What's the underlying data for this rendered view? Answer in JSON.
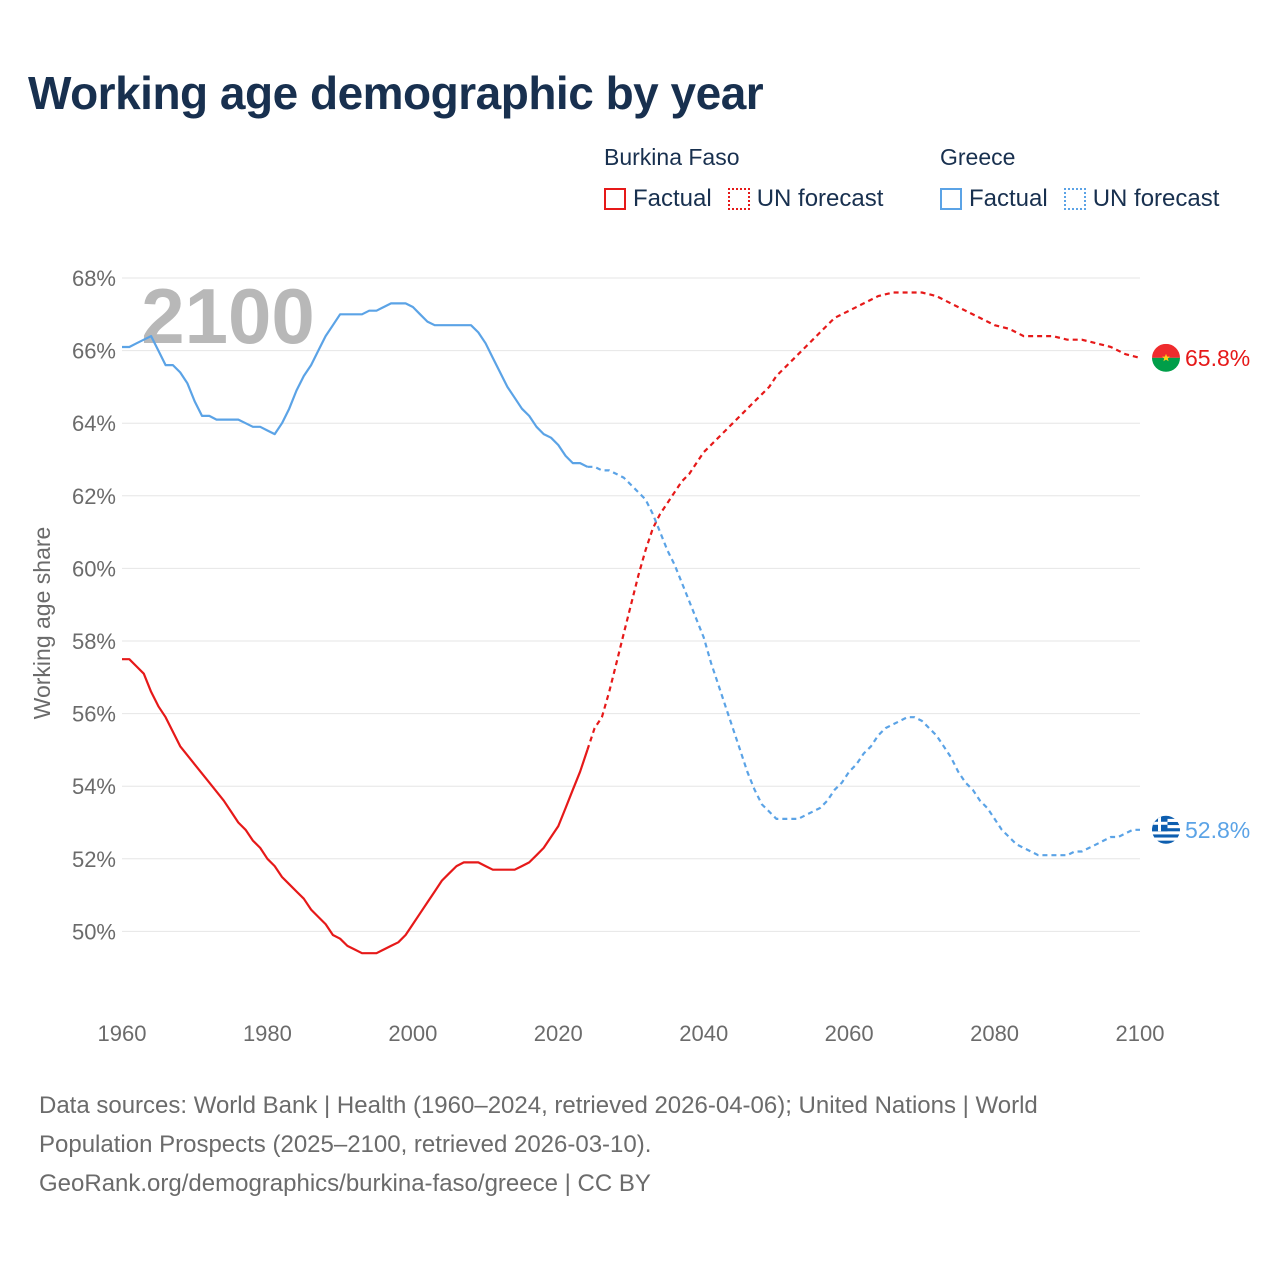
{
  "title": "Working age demographic by year",
  "legend": [
    {
      "country": "Burkina Faso",
      "color": "#e61919",
      "factual_label": "Factual",
      "forecast_label": "UN forecast"
    },
    {
      "country": "Greece",
      "color": "#5ba3e6",
      "factual_label": "Factual",
      "forecast_label": "UN forecast"
    }
  ],
  "year_watermark": "2100",
  "sources": {
    "line1": "Data sources: World Bank | Health (1960–2024, retrieved 2026-04-06); United Nations | World",
    "line2": "Population Prospects (2025–2100, retrieved 2026-03-10).",
    "line3": "GeoRank.org/demographics/burkina-faso/greece | CC BY"
  },
  "chart_data": {
    "type": "line",
    "title": "Working age demographic by year",
    "ylabel": "Working age share",
    "xlabel": "",
    "xlim": [
      1960,
      2100
    ],
    "ylim": [
      48,
      68
    ],
    "x_ticks": [
      1960,
      1980,
      2000,
      2020,
      2040,
      2060,
      2080,
      2100
    ],
    "x_tick_labels": [
      "1960",
      "1980",
      "2000",
      "2020",
      "2040",
      "2060",
      "2080",
      "2100"
    ],
    "y_ticks": [
      50,
      52,
      54,
      56,
      58,
      60,
      62,
      64,
      66,
      68
    ],
    "y_tick_labels": [
      "50%",
      "52%",
      "54%",
      "56%",
      "58%",
      "60%",
      "62%",
      "64%",
      "66%",
      "68%"
    ],
    "grid": true,
    "series": [
      {
        "name": "Burkina Faso",
        "color": "#e61919",
        "flag_icon": "burkina-faso-flag-icon",
        "end_label": "65.8%",
        "factual": {
          "x": [
            1960,
            1961,
            1962,
            1963,
            1964,
            1965,
            1966,
            1967,
            1968,
            1970,
            1972,
            1974,
            1975,
            1976,
            1977,
            1978,
            1979,
            1980,
            1981,
            1982,
            1983,
            1984,
            1985,
            1986,
            1987,
            1988,
            1989,
            1990,
            1991,
            1992,
            1993,
            1994,
            1995,
            1996,
            1997,
            1998,
            1999,
            2000,
            2001,
            2002,
            2003,
            2004,
            2005,
            2006,
            2007,
            2008,
            2009,
            2010,
            2011,
            2012,
            2013,
            2014,
            2015,
            2016,
            2017,
            2018,
            2019,
            2020,
            2021,
            2022,
            2023,
            2024
          ],
          "y": [
            57.5,
            57.5,
            57.3,
            57.1,
            56.6,
            56.2,
            55.9,
            55.5,
            55.1,
            54.6,
            54.1,
            53.6,
            53.3,
            53.0,
            52.8,
            52.5,
            52.3,
            52.0,
            51.8,
            51.5,
            51.3,
            51.1,
            50.9,
            50.6,
            50.4,
            50.2,
            49.9,
            49.8,
            49.6,
            49.5,
            49.4,
            49.4,
            49.4,
            49.5,
            49.6,
            49.7,
            49.9,
            50.2,
            50.5,
            50.8,
            51.1,
            51.4,
            51.6,
            51.8,
            51.9,
            51.9,
            51.9,
            51.8,
            51.7,
            51.7,
            51.7,
            51.7,
            51.8,
            51.9,
            52.1,
            52.3,
            52.6,
            52.9,
            53.4,
            53.9,
            54.4,
            55.0
          ]
        },
        "forecast": {
          "x": [
            2024,
            2025,
            2026,
            2027,
            2028,
            2029,
            2030,
            2031,
            2032,
            2033,
            2034,
            2035,
            2036,
            2037,
            2038,
            2039,
            2040,
            2041,
            2042,
            2043,
            2044,
            2045,
            2046,
            2047,
            2048,
            2049,
            2050,
            2052,
            2054,
            2056,
            2058,
            2060,
            2062,
            2064,
            2066,
            2068,
            2070,
            2072,
            2074,
            2076,
            2078,
            2080,
            2082,
            2084,
            2086,
            2088,
            2090,
            2092,
            2094,
            2096,
            2098,
            2100
          ],
          "y": [
            55.0,
            55.6,
            55.9,
            56.6,
            57.4,
            58.2,
            59.0,
            59.8,
            60.5,
            61.1,
            61.5,
            61.8,
            62.1,
            62.4,
            62.6,
            62.9,
            63.2,
            63.4,
            63.6,
            63.8,
            64.0,
            64.2,
            64.4,
            64.6,
            64.8,
            65.0,
            65.3,
            65.7,
            66.1,
            66.5,
            66.9,
            67.1,
            67.3,
            67.5,
            67.6,
            67.6,
            67.6,
            67.5,
            67.3,
            67.1,
            66.9,
            66.7,
            66.6,
            66.4,
            66.4,
            66.4,
            66.3,
            66.3,
            66.2,
            66.1,
            65.9,
            65.8
          ]
        }
      },
      {
        "name": "Greece",
        "color": "#5ba3e6",
        "flag_icon": "greece-flag-icon",
        "end_label": "52.8%",
        "factual": {
          "x": [
            1960,
            1961,
            1962,
            1963,
            1964,
            1965,
            1966,
            1967,
            1968,
            1969,
            1970,
            1971,
            1972,
            1973,
            1974,
            1975,
            1976,
            1977,
            1978,
            1979,
            1980,
            1981,
            1982,
            1983,
            1984,
            1985,
            1986,
            1987,
            1988,
            1989,
            1990,
            1991,
            1992,
            1993,
            1994,
            1995,
            1996,
            1997,
            1998,
            1999,
            2000,
            2001,
            2002,
            2003,
            2004,
            2005,
            2006,
            2007,
            2008,
            2009,
            2010,
            2011,
            2012,
            2013,
            2014,
            2015,
            2016,
            2017,
            2018,
            2019,
            2020,
            2021,
            2022,
            2023,
            2024
          ],
          "y": [
            66.1,
            66.1,
            66.2,
            66.3,
            66.4,
            66.0,
            65.6,
            65.6,
            65.4,
            65.1,
            64.6,
            64.2,
            64.2,
            64.1,
            64.1,
            64.1,
            64.1,
            64.0,
            63.9,
            63.9,
            63.8,
            63.7,
            64.0,
            64.4,
            64.9,
            65.3,
            65.6,
            66.0,
            66.4,
            66.7,
            67.0,
            67.0,
            67.0,
            67.0,
            67.1,
            67.1,
            67.2,
            67.3,
            67.3,
            67.3,
            67.2,
            67.0,
            66.8,
            66.7,
            66.7,
            66.7,
            66.7,
            66.7,
            66.7,
            66.5,
            66.2,
            65.8,
            65.4,
            65.0,
            64.7,
            64.4,
            64.2,
            63.9,
            63.7,
            63.6,
            63.4,
            63.1,
            62.9,
            62.9,
            62.8
          ]
        },
        "forecast": {
          "x": [
            2024,
            2025,
            2026,
            2027,
            2028,
            2029,
            2030,
            2031,
            2032,
            2033,
            2034,
            2035,
            2036,
            2037,
            2038,
            2039,
            2040,
            2041,
            2042,
            2043,
            2044,
            2045,
            2046,
            2047,
            2048,
            2049,
            2050,
            2051,
            2052,
            2053,
            2054,
            2055,
            2056,
            2057,
            2058,
            2059,
            2060,
            2061,
            2062,
            2063,
            2064,
            2065,
            2066,
            2067,
            2068,
            2069,
            2070,
            2071,
            2072,
            2073,
            2074,
            2075,
            2076,
            2077,
            2078,
            2079,
            2080,
            2081,
            2082,
            2083,
            2084,
            2085,
            2086,
            2087,
            2088,
            2089,
            2090,
            2091,
            2092,
            2093,
            2094,
            2095,
            2096,
            2097,
            2098,
            2099,
            2100
          ],
          "y": [
            62.8,
            62.8,
            62.7,
            62.7,
            62.6,
            62.5,
            62.3,
            62.1,
            61.9,
            61.5,
            61.0,
            60.5,
            60.1,
            59.6,
            59.1,
            58.6,
            58.1,
            57.4,
            56.8,
            56.2,
            55.6,
            55.0,
            54.4,
            53.9,
            53.5,
            53.3,
            53.1,
            53.1,
            53.1,
            53.1,
            53.2,
            53.3,
            53.4,
            53.6,
            53.9,
            54.1,
            54.4,
            54.6,
            54.9,
            55.1,
            55.4,
            55.6,
            55.7,
            55.8,
            55.9,
            55.9,
            55.8,
            55.6,
            55.4,
            55.1,
            54.8,
            54.4,
            54.1,
            53.9,
            53.6,
            53.4,
            53.1,
            52.8,
            52.6,
            52.4,
            52.3,
            52.2,
            52.1,
            52.1,
            52.1,
            52.1,
            52.1,
            52.2,
            52.2,
            52.3,
            52.4,
            52.5,
            52.6,
            52.6,
            52.7,
            52.8,
            52.8
          ]
        }
      }
    ]
  }
}
